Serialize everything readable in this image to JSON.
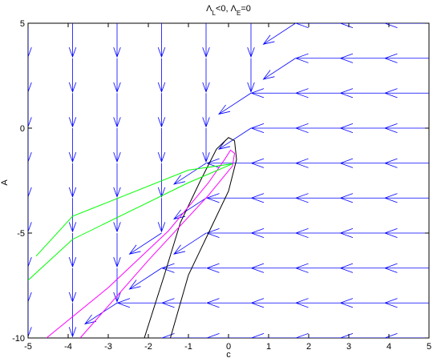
{
  "chart_data": {
    "type": "quiver",
    "title": [
      "Λ",
      "L",
      "<0, Λ",
      "E",
      "=0"
    ],
    "xlabel": "c",
    "ylabel": "A",
    "xlim": [
      -5,
      5
    ],
    "ylim": [
      -10,
      5
    ],
    "xticks": [
      -5,
      -4,
      -3,
      -2,
      -1,
      0,
      1,
      2,
      3,
      4,
      5
    ],
    "yticks": [
      -10,
      -5,
      0,
      5
    ],
    "arrow_color": "#0000ff",
    "x": [
      -5,
      -3.89,
      -2.78,
      -1.67,
      -0.56,
      0.56,
      1.67,
      2.78,
      3.89,
      5
    ],
    "y": [
      -10,
      -8.33,
      -6.67,
      -5,
      -3.33,
      -1.67,
      0,
      1.67,
      3.33,
      5
    ],
    "u": [
      [
        0,
        0,
        0,
        -0.8,
        -1.1,
        -1.1,
        -1.1,
        -1.1,
        -1.1,
        -1.1
      ],
      [
        0,
        0,
        -0.8,
        -1.1,
        -1.1,
        -1.1,
        -1.1,
        -1.1,
        -1.1,
        -1.1
      ],
      [
        0,
        0,
        0,
        -0.8,
        -1.1,
        -1.1,
        -1.1,
        -1.1,
        -1.1,
        -1.1
      ],
      [
        0,
        0,
        0,
        -0.8,
        -0.8,
        -1.1,
        -1.1,
        -1.1,
        -1.1,
        -1.1
      ],
      [
        0,
        0,
        0,
        0,
        -0.8,
        -1.1,
        -1.1,
        -1.1,
        -1.1,
        -1.1
      ],
      [
        0,
        0,
        0,
        0,
        -0.8,
        -1.1,
        -1.1,
        -1.1,
        -1.1,
        -1.1
      ],
      [
        0,
        0,
        0,
        0,
        0,
        -0.8,
        -1.1,
        -1.1,
        -1.1,
        -1.1
      ],
      [
        0,
        0,
        0,
        0,
        0,
        -0.8,
        -1.1,
        -1.1,
        -1.1,
        -1.1
      ],
      [
        0,
        0,
        0,
        0,
        0,
        0,
        -0.8,
        -1.1,
        -1.1,
        -1.1
      ],
      [
        0,
        0,
        0,
        0,
        0,
        0,
        -0.8,
        -1.1,
        -1.1,
        -1.1
      ]
    ],
    "v": [
      [
        -1.6,
        -1.6,
        -1.6,
        -1,
        0,
        0,
        0,
        0,
        0,
        0
      ],
      [
        -1.6,
        -1.6,
        -1,
        0,
        0,
        0,
        0,
        0,
        0,
        0
      ],
      [
        -1.6,
        -1.6,
        -1.6,
        -1,
        0,
        0,
        0,
        0,
        0,
        0
      ],
      [
        -1.6,
        -1.6,
        -1.6,
        -1,
        -1,
        0,
        0,
        0,
        0,
        0
      ],
      [
        -1.6,
        -1.6,
        -1.6,
        -1.6,
        -1,
        0,
        0,
        0,
        0,
        0
      ],
      [
        -1.6,
        -1.6,
        -1.6,
        -1.6,
        -1,
        0,
        0,
        0,
        0,
        0
      ],
      [
        -1.6,
        -1.6,
        -1.6,
        -1.6,
        -1.6,
        -1,
        0,
        0,
        0,
        0
      ],
      [
        -1.6,
        -1.6,
        -1.6,
        -1.6,
        -1.6,
        -1,
        0,
        0,
        0,
        0
      ],
      [
        -1.6,
        -1.6,
        -1.6,
        -1.6,
        -1.6,
        -1.6,
        -1,
        0,
        0,
        0
      ],
      [
        -1.6,
        -1.6,
        -1.6,
        -1.6,
        -1.6,
        -1.6,
        -1,
        0,
        0,
        0
      ]
    ],
    "curves": [
      {
        "color": "#000000",
        "x": [
          -2.1,
          -1.6,
          -1.2,
          -0.7,
          -0.3,
          0,
          0.15,
          0.2,
          0,
          -0.5,
          -1.0,
          -1.45
        ],
        "y": [
          -10,
          -7,
          -4.5,
          -2.5,
          -1.0,
          -0.45,
          -0.6,
          -1.5,
          -3,
          -5,
          -7,
          -10
        ]
      },
      {
        "color": "#ff00ff",
        "x": [
          -4.54,
          -3,
          -1.5,
          -0.5,
          -0.1,
          0.05,
          0.15,
          0.1,
          -0.5,
          -2,
          -3.7
        ],
        "y": [
          -10,
          -7.6,
          -4.9,
          -2.6,
          -1.5,
          -1.05,
          -1.2,
          -1.8,
          -3.2,
          -6.3,
          -10
        ]
      },
      {
        "color": "#00ff00",
        "x": [
          -4.8,
          -3.89,
          -1,
          0.1,
          -1,
          -3.89,
          -5
        ],
        "y": [
          -6.1,
          -4.2,
          -2.0,
          -1.7,
          -2.6,
          -5.3,
          -7.25
        ]
      }
    ]
  }
}
